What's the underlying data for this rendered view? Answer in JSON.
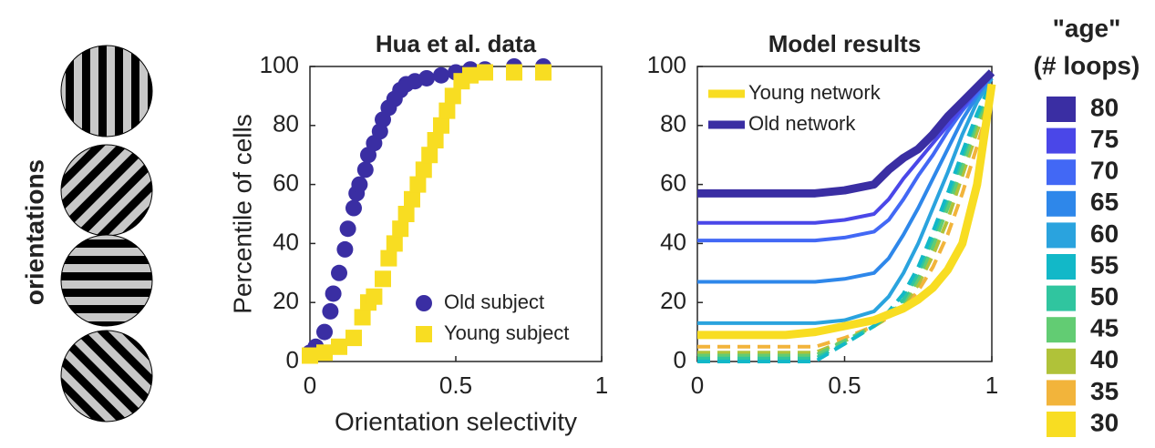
{
  "side_label": "orientations",
  "chart_data": [
    {
      "type": "scatter",
      "title": "Hua et al. data",
      "x_label": "Orientation selectivity",
      "y_label": "Percentile of cells",
      "xlim": [
        0,
        1
      ],
      "ylim": [
        0,
        100
      ],
      "xticks": [
        0,
        0.5,
        1
      ],
      "yticks": [
        0,
        20,
        40,
        60,
        80,
        100
      ],
      "legend": "lower right",
      "series": [
        {
          "name": "Old subject",
          "color": "#3a2ea3",
          "marker": "circle",
          "x": [
            0,
            0.02,
            0.05,
            0.07,
            0.08,
            0.1,
            0.12,
            0.13,
            0.15,
            0.16,
            0.17,
            0.19,
            0.2,
            0.22,
            0.24,
            0.25,
            0.27,
            0.29,
            0.31,
            0.33,
            0.36,
            0.4,
            0.45,
            0.5,
            0.55,
            0.6,
            0.7,
            0.8
          ],
          "values": [
            3,
            5,
            10,
            17,
            23,
            30,
            38,
            45,
            52,
            57,
            60,
            65,
            70,
            74,
            78,
            82,
            86,
            89,
            92,
            94,
            95,
            96,
            97,
            98,
            99,
            99,
            100,
            100
          ]
        },
        {
          "name": "Young subject",
          "color": "#f8dd22",
          "marker": "square",
          "x": [
            0,
            0.05,
            0.1,
            0.15,
            0.18,
            0.2,
            0.22,
            0.25,
            0.27,
            0.29,
            0.31,
            0.33,
            0.35,
            0.37,
            0.39,
            0.41,
            0.43,
            0.45,
            0.47,
            0.49,
            0.52,
            0.55,
            0.6,
            0.7,
            0.8
          ],
          "values": [
            2,
            3,
            5,
            8,
            15,
            20,
            22,
            28,
            35,
            40,
            45,
            50,
            55,
            60,
            65,
            70,
            75,
            80,
            85,
            90,
            95,
            97,
            98,
            98,
            98
          ]
        }
      ]
    },
    {
      "type": "line",
      "title": "Model results",
      "xlim": [
        0,
        1
      ],
      "ylim": [
        0,
        100
      ],
      "xticks": [
        0,
        0.5,
        1
      ],
      "yticks": [
        0,
        20,
        40,
        60,
        80,
        100
      ],
      "legend": "upper left",
      "x": [
        0,
        0.1,
        0.2,
        0.3,
        0.4,
        0.5,
        0.6,
        0.65,
        0.7,
        0.75,
        0.8,
        0.85,
        0.9,
        0.95,
        1
      ],
      "series": [
        {
          "color": "#f2b43b",
          "dashed": true,
          "values": [
            5,
            5,
            5,
            5,
            5,
            8,
            12,
            15,
            18,
            24,
            32,
            43,
            57,
            73,
            90
          ]
        },
        {
          "color": "#b0c239",
          "dashed": true,
          "values": [
            3,
            3,
            3,
            3,
            3,
            7,
            12,
            15,
            19,
            26,
            36,
            48,
            63,
            78,
            92
          ]
        },
        {
          "color": "#62cc73",
          "dashed": true,
          "values": [
            2,
            2,
            2,
            2,
            2,
            7,
            12,
            16,
            20,
            28,
            39,
            52,
            66,
            81,
            93
          ]
        },
        {
          "color": "#30c59f",
          "dashed": true,
          "values": [
            1,
            1,
            1,
            1,
            1,
            6,
            12,
            16,
            21,
            30,
            42,
            55,
            69,
            83,
            94
          ]
        },
        {
          "color": "#12b8c8",
          "dashed": true,
          "values": [
            0,
            0,
            0,
            0,
            0,
            6,
            12,
            17,
            23,
            32,
            44,
            57,
            71,
            84,
            95
          ]
        },
        {
          "color": "#2aa3de",
          "dashed": false,
          "values": [
            13,
            13,
            13,
            13,
            13,
            14,
            17,
            22,
            30,
            40,
            52,
            64,
            77,
            88,
            96
          ]
        },
        {
          "color": "#2e87ea",
          "dashed": false,
          "values": [
            27,
            27,
            27,
            27,
            27,
            28,
            30,
            35,
            43,
            52,
            62,
            72,
            82,
            90,
            97
          ]
        },
        {
          "color": "#4268f5",
          "dashed": false,
          "values": [
            41,
            41,
            41,
            41,
            41,
            42,
            44,
            48,
            55,
            63,
            70,
            78,
            85,
            91,
            97
          ]
        },
        {
          "color": "#4a47e8",
          "dashed": false,
          "values": [
            47,
            47,
            47,
            47,
            47,
            48,
            50,
            55,
            62,
            68,
            74,
            80,
            86,
            92,
            98
          ]
        },
        {
          "name": "Young network",
          "color": "#f8dd22",
          "dashed": false,
          "thick": true,
          "values": [
            9,
            9,
            9,
            9,
            10,
            12,
            14,
            16,
            18,
            21,
            25,
            31,
            40,
            60,
            94
          ]
        },
        {
          "name": "Old network",
          "color": "#3a2ea3",
          "dashed": false,
          "thick": true,
          "values": [
            57,
            57,
            57,
            57,
            57,
            58,
            60,
            65,
            69,
            72,
            77,
            83,
            88,
            93,
            98
          ]
        }
      ]
    }
  ],
  "age_legend": {
    "title": "\"age\"",
    "subtitle": "(# loops)",
    "labels": [
      80,
      75,
      70,
      65,
      60,
      55,
      50,
      45,
      40,
      35,
      30
    ],
    "colors": [
      "#3a2ea3",
      "#4a47e8",
      "#4268f5",
      "#2e87ea",
      "#2aa3de",
      "#12b8c8",
      "#30c59f",
      "#62cc73",
      "#b0c239",
      "#f2b43b",
      "#f8dd22"
    ]
  }
}
